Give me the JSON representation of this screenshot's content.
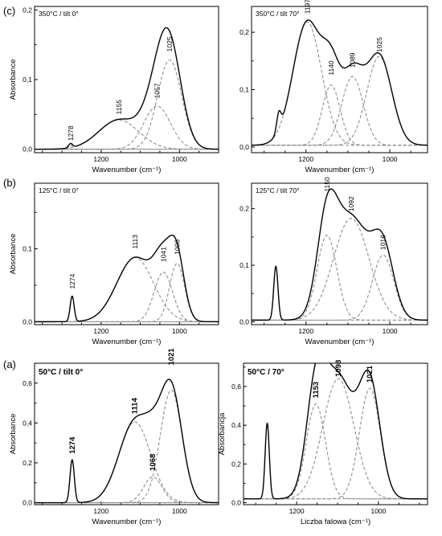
{
  "row_labels": [
    "(c)",
    "(b)",
    "(a)"
  ],
  "chart_data": [
    {
      "type": "line",
      "row": 0,
      "col": 0,
      "title": "350°C / tilt 0°",
      "xlabel": "Wavenumber (cm⁻¹)",
      "ylabel": "Absorbance",
      "xlim": [
        1370,
        900
      ],
      "ylim": [
        -0.005,
        0.205
      ],
      "xticks": [
        1200,
        1000
      ],
      "yticks": [
        0.0,
        0.1,
        0.2
      ],
      "ytick_labels": [
        "0,0",
        "0,1",
        "0,2"
      ],
      "bold_text": false,
      "baseline": 0.0,
      "components": [
        {
          "center": 1278,
          "height": 0.006,
          "width": 12,
          "label": "1278"
        },
        {
          "center": 1155,
          "height": 0.042,
          "width": 120,
          "label": "1155"
        },
        {
          "center": 1057,
          "height": 0.062,
          "width": 80,
          "label": "1057"
        },
        {
          "center": 1025,
          "height": 0.128,
          "width": 72,
          "label": "1025"
        }
      ],
      "peak_labels": [
        {
          "text": "1278",
          "x": 1278,
          "y": 0.012
        },
        {
          "text": "1155",
          "x": 1155,
          "y": 0.05
        },
        {
          "text": "1057",
          "x": 1057,
          "y": 0.073
        },
        {
          "text": "1025",
          "x": 1025,
          "y": 0.14
        }
      ]
    },
    {
      "type": "line",
      "row": 0,
      "col": 1,
      "title": "350°C / tilt 70°",
      "xlabel": "Wavenumber (cm⁻¹)",
      "ylabel": "",
      "xlim": [
        1330,
        910
      ],
      "ylim": [
        -0.01,
        0.245
      ],
      "xticks": [
        1200,
        1000
      ],
      "yticks": [
        0.0,
        0.1,
        0.2
      ],
      "ytick_labels": [
        "0,0",
        "0,1",
        "0,2"
      ],
      "bold_text": false,
      "baseline": 0.003,
      "components": [
        {
          "center": 1265,
          "height": 0.03,
          "width": 12,
          "label": ""
        },
        {
          "center": 1197,
          "height": 0.215,
          "width": 80,
          "label": "1197"
        },
        {
          "center": 1140,
          "height": 0.105,
          "width": 50,
          "label": "1140"
        },
        {
          "center": 1089,
          "height": 0.12,
          "width": 60,
          "label": "1089"
        },
        {
          "center": 1025,
          "height": 0.155,
          "width": 70,
          "label": "1025"
        }
      ],
      "peak_labels": [
        {
          "text": "1197",
          "x": 1197,
          "y": 0.232
        },
        {
          "text": "1140",
          "x": 1140,
          "y": 0.125
        },
        {
          "text": "1089",
          "x": 1089,
          "y": 0.138
        },
        {
          "text": "1025",
          "x": 1025,
          "y": 0.165
        }
      ]
    },
    {
      "type": "line",
      "row": 1,
      "col": 0,
      "title": "125°C / tilt 0°",
      "xlabel": "Wavenumber (cm⁻¹)",
      "ylabel": "Absorbance",
      "xlim": [
        1370,
        900
      ],
      "ylim": [
        -0.004,
        0.19
      ],
      "xticks": [
        1200,
        1000
      ],
      "yticks": [
        0.0,
        0.1
      ],
      "ytick_labels": [
        "0,0",
        "0,1"
      ],
      "bold_text": false,
      "baseline": 0.0,
      "components": [
        {
          "center": 1274,
          "height": 0.035,
          "width": 12,
          "label": "1274"
        },
        {
          "center": 1113,
          "height": 0.088,
          "width": 110,
          "label": "1113"
        },
        {
          "center": 1041,
          "height": 0.068,
          "width": 55,
          "label": "1041"
        },
        {
          "center": 1006,
          "height": 0.08,
          "width": 45,
          "label": "1006"
        }
      ],
      "peak_labels": [
        {
          "text": "1274",
          "x": 1274,
          "y": 0.045
        },
        {
          "text": "1113",
          "x": 1113,
          "y": 0.1
        },
        {
          "text": "1041",
          "x": 1041,
          "y": 0.082
        },
        {
          "text": "1006",
          "x": 1006,
          "y": 0.092
        }
      ]
    },
    {
      "type": "line",
      "row": 1,
      "col": 1,
      "title": "125°C / tilt 70°",
      "xlabel": "Wavenumber (cm⁻¹)",
      "ylabel": "",
      "xlim": [
        1330,
        910
      ],
      "ylim": [
        -0.005,
        0.245
      ],
      "xticks": [
        1200,
        1000
      ],
      "yticks": [
        0.0,
        0.1,
        0.2
      ],
      "ytick_labels": [
        "0,0",
        "0,1",
        "0,2"
      ],
      "bold_text": false,
      "baseline": 0.003,
      "components": [
        {
          "center": 1272,
          "height": 0.095,
          "width": 12,
          "label": ""
        },
        {
          "center": 1150,
          "height": 0.15,
          "width": 55,
          "label": "1150"
        },
        {
          "center": 1092,
          "height": 0.18,
          "width": 100,
          "label": "1092"
        },
        {
          "center": 1016,
          "height": 0.115,
          "width": 60,
          "label": "1016"
        }
      ],
      "peak_labels": [
        {
          "text": "1150",
          "x": 1150,
          "y": 0.23
        },
        {
          "text": "1092",
          "x": 1092,
          "y": 0.195
        },
        {
          "text": "1016",
          "x": 1016,
          "y": 0.127
        }
      ]
    },
    {
      "type": "line",
      "row": 2,
      "col": 0,
      "title": "50°C / tilt 0°",
      "xlabel": "Wavenumber (cm⁻¹)",
      "ylabel": "Absorbance",
      "xlim": [
        1370,
        900
      ],
      "ylim": [
        -0.01,
        0.7
      ],
      "xticks": [
        1200,
        1000
      ],
      "yticks": [
        0.0,
        0.2,
        0.4,
        0.6
      ],
      "ytick_labels": [
        "0,0",
        "0,2",
        "0,4",
        "0,6"
      ],
      "bold_text": true,
      "baseline": 0.0,
      "components": [
        {
          "center": 1274,
          "height": 0.215,
          "width": 13,
          "label": "1274"
        },
        {
          "center": 1114,
          "height": 0.405,
          "width": 95,
          "label": "1114"
        },
        {
          "center": 1068,
          "height": 0.13,
          "width": 55,
          "label": "1068"
        },
        {
          "center": 1021,
          "height": 0.565,
          "width": 65,
          "label": "1021"
        }
      ],
      "peak_labels": [
        {
          "text": "1274",
          "x": 1274,
          "y": 0.245
        },
        {
          "text": "1114",
          "x": 1114,
          "y": 0.445
        },
        {
          "text": "1068",
          "x": 1068,
          "y": 0.16
        },
        {
          "text": "1021",
          "x": 1021,
          "y": 0.69
        }
      ]
    },
    {
      "type": "line",
      "row": 2,
      "col": 1,
      "title": "50°C / 70°",
      "xlabel": "Liczba falowa (cm⁻¹)",
      "ylabel": "Absorbancja",
      "xlim": [
        1330,
        880
      ],
      "ylim": [
        -0.01,
        0.72
      ],
      "xticks": [
        1200,
        1000
      ],
      "yticks": [
        0.0,
        0.2,
        0.4,
        0.6
      ],
      "ytick_labels": [
        "0,0",
        "0,2",
        "0,4",
        "0,6"
      ],
      "bold_text": true,
      "baseline": 0.02,
      "components": [
        {
          "center": 1272,
          "height": 0.39,
          "width": 12,
          "label": ""
        },
        {
          "center": 1153,
          "height": 0.49,
          "width": 55,
          "label": "1153"
        },
        {
          "center": 1098,
          "height": 0.62,
          "width": 90,
          "label": "1098"
        },
        {
          "center": 1021,
          "height": 0.57,
          "width": 60,
          "label": "1021"
        }
      ],
      "peak_labels": [
        {
          "text": "1153",
          "x": 1153,
          "y": 0.54
        },
        {
          "text": "1098",
          "x": 1098,
          "y": 0.65
        },
        {
          "text": "1021",
          "x": 1021,
          "y": 0.62
        }
      ]
    }
  ]
}
